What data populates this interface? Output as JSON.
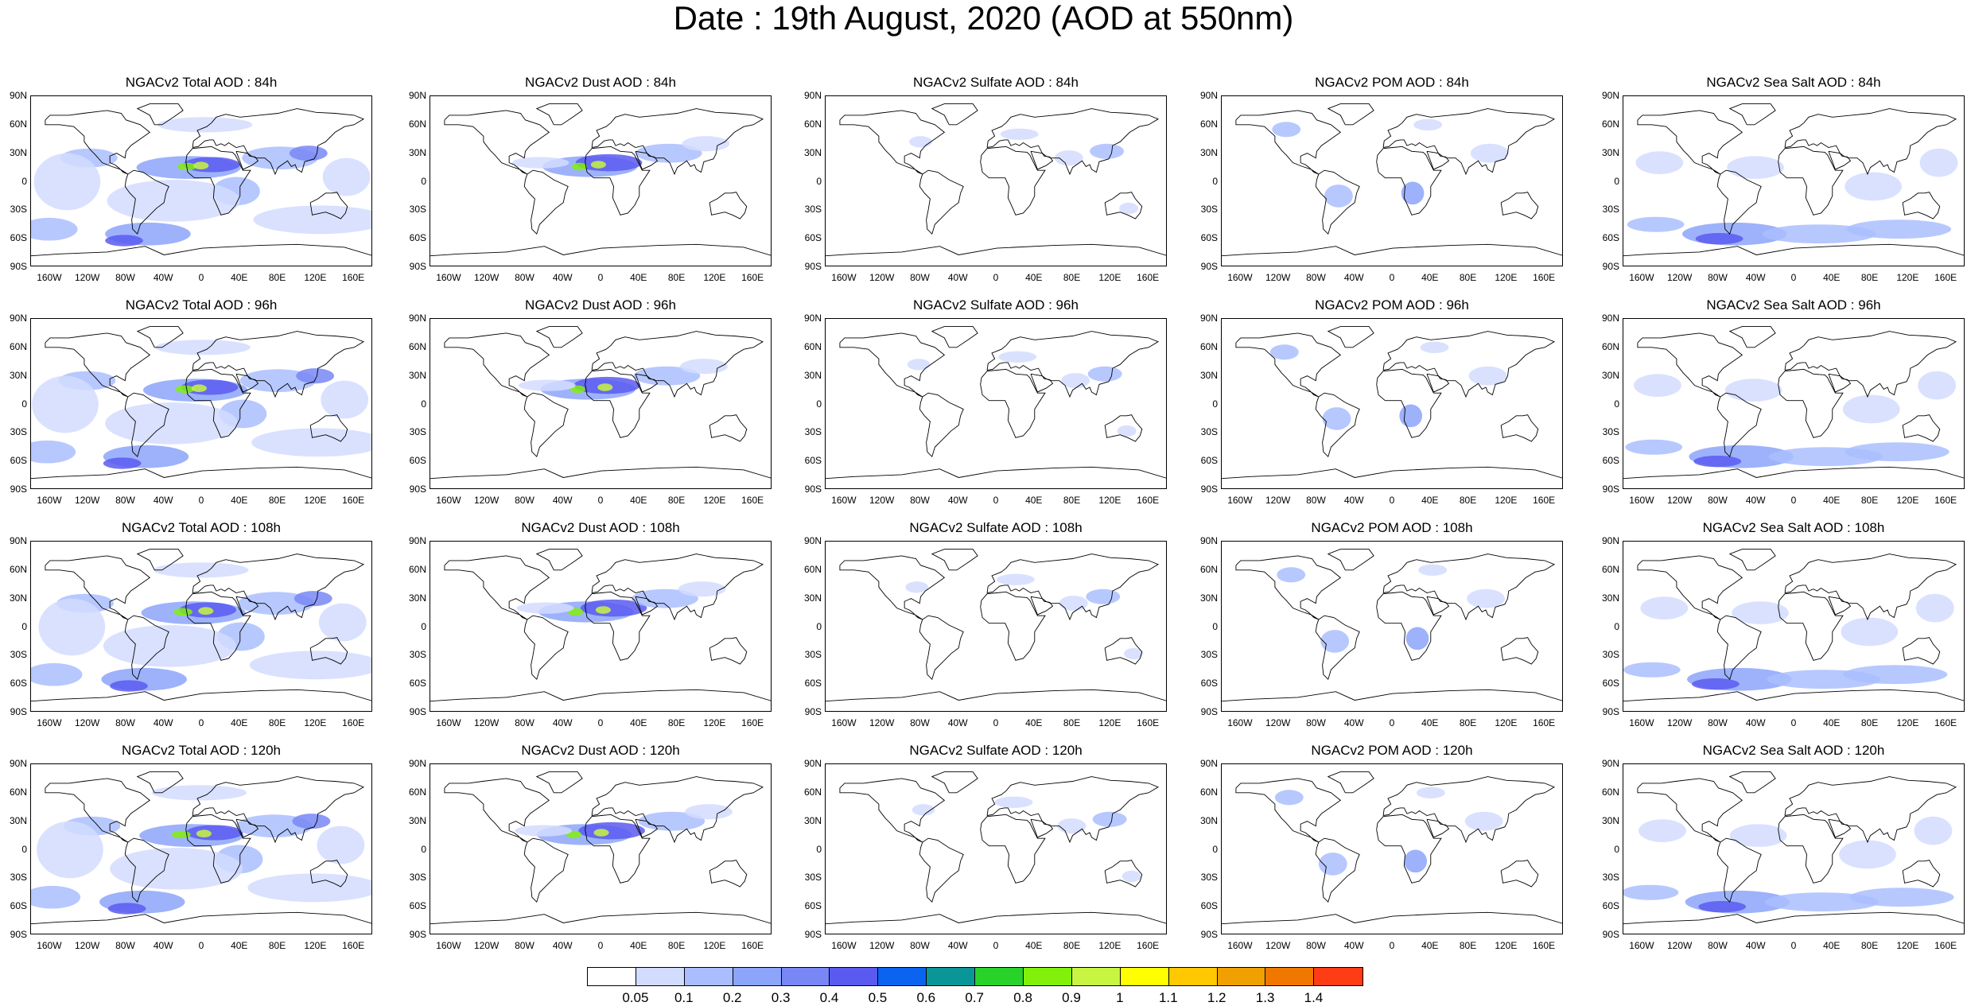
{
  "title": "Date : 19th August, 2020 (AOD at 550nm)",
  "lat_ticks": [
    "90N",
    "60N",
    "30N",
    "0",
    "30S",
    "60S",
    "90S"
  ],
  "lon_ticks": [
    "160W",
    "120W",
    "80W",
    "40W",
    "0",
    "40E",
    "80E",
    "120E",
    "160E"
  ],
  "panels": [
    [
      "NGACv2 Total AOD : 84h",
      "NGACv2 Dust AOD : 84h",
      "NGACv2 Sulfate AOD : 84h",
      "NGACv2 POM AOD : 84h",
      "NGACv2 Sea Salt AOD : 84h"
    ],
    [
      "NGACv2 Total AOD : 96h",
      "NGACv2 Dust AOD : 96h",
      "NGACv2 Sulfate AOD : 96h",
      "NGACv2 POM AOD : 96h",
      "NGACv2 Sea Salt AOD : 96h"
    ],
    [
      "NGACv2 Total AOD : 108h",
      "NGACv2 Dust AOD : 108h",
      "NGACv2 Sulfate AOD : 108h",
      "NGACv2 POM AOD : 108h",
      "NGACv2 Sea Salt AOD : 108h"
    ],
    [
      "NGACv2 Total AOD : 120h",
      "NGACv2 Dust AOD : 120h",
      "NGACv2 Sulfate AOD : 120h",
      "NGACv2 POM AOD : 120h",
      "NGACv2 Sea Salt  AOD : 120h"
    ]
  ],
  "colorbar": {
    "labels": [
      "0.05",
      "0.1",
      "0.2",
      "0.3",
      "0.4",
      "0.5",
      "0.6",
      "0.7",
      "0.8",
      "0.9",
      "1",
      "1.1",
      "1.2",
      "1.3",
      "1.4"
    ],
    "colors": [
      "#ffffff",
      "#d2dcff",
      "#aabeff",
      "#8ca5fa",
      "#7887f5",
      "#5a5af0",
      "#0a64f0",
      "#0a9696",
      "#28d228",
      "#82f00a",
      "#c8f541",
      "#ffff00",
      "#ffc800",
      "#f0a000",
      "#f07800",
      "#ff3c14"
    ]
  }
}
